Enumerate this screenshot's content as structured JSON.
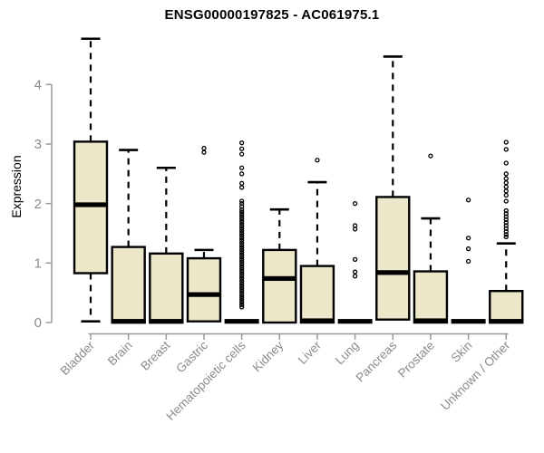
{
  "chart_data": {
    "type": "boxplot",
    "title": "ENSG00000197825 - AC061975.1",
    "ylabel": "Expression",
    "ylim": [
      0,
      4.9
    ],
    "yticks": [
      0,
      1,
      2,
      3,
      4
    ],
    "grid": false,
    "legend": "none",
    "categories": [
      "Bladder",
      "Brain",
      "Breast",
      "Gastric",
      "Hematopoietic cells",
      "Kidney",
      "Liver",
      "Lung",
      "Pancreas",
      "Prostate",
      "Skin",
      "Unknown / Other"
    ],
    "boxes": [
      {
        "name": "Bladder",
        "whisker_low": 0.02,
        "q1": 0.83,
        "median": 1.98,
        "q3": 3.04,
        "whisker_high": 4.77,
        "outliers": []
      },
      {
        "name": "Brain",
        "whisker_low": 0,
        "q1": 0,
        "median": 0.02,
        "q3": 1.27,
        "whisker_high": 2.9,
        "outliers": []
      },
      {
        "name": "Breast",
        "whisker_low": 0,
        "q1": 0,
        "median": 0.02,
        "q3": 1.16,
        "whisker_high": 2.6,
        "outliers": []
      },
      {
        "name": "Gastric",
        "whisker_low": 0.02,
        "q1": 0.02,
        "median": 0.47,
        "q3": 1.08,
        "whisker_high": 1.22,
        "outliers": [
          2.86,
          2.93
        ]
      },
      {
        "name": "Hematopoietic cells",
        "whisker_low": 0,
        "q1": 0,
        "median": 0.02,
        "q3": 0.02,
        "whisker_high": 0.02,
        "outliers": [
          3.02,
          2.92,
          2.83,
          2.6,
          2.5,
          2.34,
          2.27,
          2.04,
          2.0,
          1.95,
          1.9,
          1.86,
          1.82,
          1.78,
          1.74,
          1.7,
          1.66,
          1.62,
          1.58,
          1.54,
          1.5,
          1.46,
          1.42,
          1.38,
          1.34,
          1.3,
          1.26,
          1.22,
          1.18,
          1.14,
          1.1,
          1.06,
          1.02,
          0.98,
          0.94,
          0.9,
          0.86,
          0.82,
          0.78,
          0.74,
          0.7,
          0.66,
          0.62,
          0.58,
          0.54,
          0.5,
          0.46,
          0.42,
          0.38,
          0.34,
          0.3,
          0.26
        ]
      },
      {
        "name": "Kidney",
        "whisker_low": 0,
        "q1": 0,
        "median": 0.74,
        "q3": 1.22,
        "whisker_high": 1.9,
        "outliers": []
      },
      {
        "name": "Liver",
        "whisker_low": 0,
        "q1": 0,
        "median": 0.03,
        "q3": 0.95,
        "whisker_high": 2.36,
        "outliers": [
          2.73
        ]
      },
      {
        "name": "Lung",
        "whisker_low": 0,
        "q1": 0,
        "median": 0.02,
        "q3": 0.02,
        "whisker_high": 0.02,
        "outliers": [
          0.78,
          0.85,
          1.06,
          1.57,
          1.63,
          2.0
        ]
      },
      {
        "name": "Pancreas",
        "whisker_low": 0.05,
        "q1": 0.05,
        "median": 0.84,
        "q3": 2.11,
        "whisker_high": 4.47,
        "outliers": []
      },
      {
        "name": "Prostate",
        "whisker_low": 0,
        "q1": 0,
        "median": 0.03,
        "q3": 0.86,
        "whisker_high": 1.75,
        "outliers": [
          2.8
        ]
      },
      {
        "name": "Skin",
        "whisker_low": 0,
        "q1": 0,
        "median": 0.02,
        "q3": 0.02,
        "whisker_high": 0.02,
        "outliers": [
          1.03,
          1.24,
          1.42,
          2.06
        ]
      },
      {
        "name": "Unknown / Other",
        "whisker_low": 0,
        "q1": 0,
        "median": 0.02,
        "q3": 0.53,
        "whisker_high": 1.33,
        "outliers": [
          3.03,
          2.91,
          2.68,
          2.5,
          2.42,
          2.35,
          2.28,
          2.21,
          2.14,
          2.04,
          1.88,
          1.83,
          1.78,
          1.73,
          1.68,
          1.63,
          1.58,
          1.53,
          1.48,
          1.44
        ]
      }
    ],
    "colors": {
      "box_fill": "#EDE7CA",
      "box_stroke": "#000000",
      "axis": "#9A9A9A",
      "tick_label": "#8B8B8B",
      "title": "#000000"
    }
  }
}
